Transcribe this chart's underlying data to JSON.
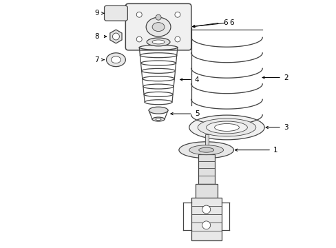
{
  "background_color": "#ffffff",
  "line_color": "#444444",
  "figsize": [
    4.89,
    3.6
  ],
  "dpi": 100,
  "lw": 0.9,
  "lw_thin": 0.6,
  "lw_thick": 1.1
}
